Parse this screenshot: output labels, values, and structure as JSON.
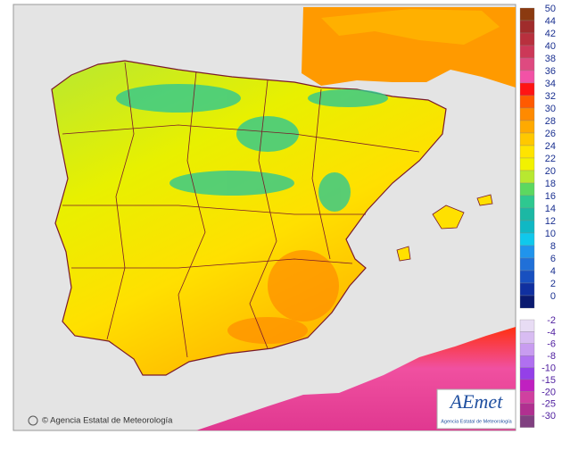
{
  "map": {
    "credit": "© Agencia Estatal de Meteorología",
    "logo": {
      "name": "AEmet",
      "subtitle": "Agencia Estatal de Meteorología"
    },
    "legend": {
      "positive": [
        {
          "value": 50,
          "color": "#8b3a10"
        },
        {
          "value": 44,
          "color": "#a02c2c"
        },
        {
          "value": 42,
          "color": "#b8303e"
        },
        {
          "value": 40,
          "color": "#cc3858"
        },
        {
          "value": 38,
          "color": "#de4a80"
        },
        {
          "value": 36,
          "color": "#f252a6"
        },
        {
          "value": 34,
          "color": "#ff1414"
        },
        {
          "value": 32,
          "color": "#ff5a00"
        },
        {
          "value": 30,
          "color": "#ff8a00"
        },
        {
          "value": 28,
          "color": "#ffaa00"
        },
        {
          "value": 26,
          "color": "#ffc800"
        },
        {
          "value": 24,
          "color": "#ffe400"
        },
        {
          "value": 22,
          "color": "#f2f200"
        },
        {
          "value": 20,
          "color": "#b8e830"
        },
        {
          "value": 18,
          "color": "#5cd860"
        },
        {
          "value": 16,
          "color": "#2ec890"
        },
        {
          "value": 14,
          "color": "#1cb8a4"
        },
        {
          "value": 12,
          "color": "#10b8c4"
        },
        {
          "value": 10,
          "color": "#10c8ec"
        },
        {
          "value": 8,
          "color": "#2094ec"
        },
        {
          "value": 6,
          "color": "#2070d8"
        },
        {
          "value": 4,
          "color": "#1850c0"
        },
        {
          "value": 2,
          "color": "#1030a0"
        },
        {
          "value": 0,
          "color": "#0a1a70"
        }
      ],
      "negative": [
        {
          "value": -2,
          "color": "#e8dcf4"
        },
        {
          "value": -4,
          "color": "#d8bcf2"
        },
        {
          "value": -6,
          "color": "#c89cf0"
        },
        {
          "value": -8,
          "color": "#b070f0"
        },
        {
          "value": -10,
          "color": "#9440e8"
        },
        {
          "value": -15,
          "color": "#c020c0"
        },
        {
          "value": -20,
          "color": "#d040a0"
        },
        {
          "value": -25,
          "color": "#b03090"
        },
        {
          "value": -30,
          "color": "#804080"
        }
      ]
    }
  }
}
